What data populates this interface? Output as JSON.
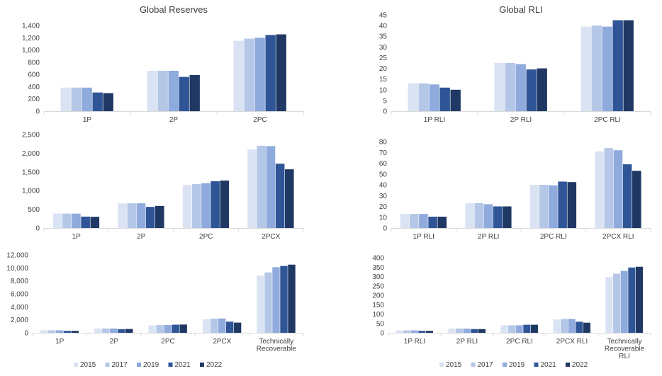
{
  "colors": [
    "#dae3f3",
    "#b4c7e7",
    "#8faadc",
    "#2f5597",
    "#203864"
  ],
  "legends": [
    {
      "entries": [
        "2015",
        "2017",
        "2019",
        "2021",
        "2022"
      ]
    },
    {
      "entries": [
        "2015",
        "2017",
        "2019",
        "2021",
        "2022"
      ]
    }
  ],
  "chart_data": [
    {
      "type": "bar",
      "title": "Global Reserves",
      "categories": [
        [
          "1P"
        ],
        [
          "2P"
        ],
        [
          "2PC"
        ]
      ],
      "yticks": [
        "0",
        "200",
        "400",
        "600",
        "800",
        "1,000",
        "1,200",
        "1,400"
      ],
      "ylim": [
        0,
        1400
      ],
      "series": [
        {
          "name": "2015",
          "values": [
            385,
            660,
            1150
          ]
        },
        {
          "name": "2017",
          "values": [
            385,
            660,
            1185
          ]
        },
        {
          "name": "2019",
          "values": [
            385,
            660,
            1200
          ]
        },
        {
          "name": "2021",
          "values": [
            305,
            560,
            1245
          ]
        },
        {
          "name": "2022",
          "values": [
            295,
            590,
            1255
          ]
        }
      ]
    },
    {
      "type": "bar",
      "title": "Global RLI",
      "categories": [
        [
          "1P RLI"
        ],
        [
          "2P RLI"
        ],
        [
          "2PC RLI"
        ]
      ],
      "yticks": [
        "0",
        "5",
        "10",
        "15",
        "20",
        "25",
        "30",
        "35",
        "40",
        "45"
      ],
      "ylim": [
        0,
        45
      ],
      "series": [
        {
          "name": "2015",
          "values": [
            13,
            22.5,
            39.5
          ]
        },
        {
          "name": "2017",
          "values": [
            13,
            22.5,
            40
          ]
        },
        {
          "name": "2019",
          "values": [
            12.5,
            22,
            39.5
          ]
        },
        {
          "name": "2021",
          "values": [
            11,
            19.5,
            42.5
          ]
        },
        {
          "name": "2022",
          "values": [
            10,
            20,
            42.5
          ]
        }
      ]
    },
    {
      "type": "bar",
      "title": "",
      "categories": [
        [
          "1P"
        ],
        [
          "2P"
        ],
        [
          "2PC"
        ],
        [
          "2PCX"
        ]
      ],
      "yticks": [
        "0",
        "500",
        "1,000",
        "1,500",
        "2,000",
        "2,500"
      ],
      "ylim": [
        0,
        2500
      ],
      "series": [
        {
          "name": "2015",
          "values": [
            385,
            660,
            1150,
            2100
          ]
        },
        {
          "name": "2017",
          "values": [
            385,
            660,
            1175,
            2200
          ]
        },
        {
          "name": "2019",
          "values": [
            385,
            660,
            1200,
            2190
          ]
        },
        {
          "name": "2021",
          "values": [
            305,
            565,
            1250,
            1720
          ]
        },
        {
          "name": "2022",
          "values": [
            300,
            590,
            1270,
            1570
          ]
        }
      ]
    },
    {
      "type": "bar",
      "title": "",
      "categories": [
        [
          "1P RLI"
        ],
        [
          "2P RLI"
        ],
        [
          "2PC RLI"
        ],
        [
          "2PCX RLI"
        ]
      ],
      "yticks": [
        "0",
        "10",
        "20",
        "30",
        "40",
        "50",
        "60",
        "70",
        "80"
      ],
      "ylim": [
        0,
        80
      ],
      "series": [
        {
          "name": "2015",
          "values": [
            13,
            23,
            40,
            71
          ]
        },
        {
          "name": "2017",
          "values": [
            13,
            23,
            40,
            74
          ]
        },
        {
          "name": "2019",
          "values": [
            13,
            22,
            39.5,
            72
          ]
        },
        {
          "name": "2021",
          "values": [
            10.5,
            20,
            43,
            59
          ]
        },
        {
          "name": "2022",
          "values": [
            10.5,
            20,
            42.5,
            53
          ]
        }
      ]
    },
    {
      "type": "bar",
      "title": "",
      "categories": [
        [
          "1P"
        ],
        [
          "2P"
        ],
        [
          "2PC"
        ],
        [
          "2PCX"
        ],
        [
          "Technically",
          "Recoverable"
        ]
      ],
      "yticks": [
        "0",
        "2,000",
        "4,000",
        "6,000",
        "8,000",
        "10,000",
        "12,000"
      ],
      "ylim": [
        0,
        12000
      ],
      "series": [
        {
          "name": "2015",
          "values": [
            385,
            660,
            1150,
            2100,
            8800
          ]
        },
        {
          "name": "2017",
          "values": [
            385,
            660,
            1185,
            2200,
            9300
          ]
        },
        {
          "name": "2019",
          "values": [
            385,
            660,
            1200,
            2200,
            10100
          ]
        },
        {
          "name": "2021",
          "values": [
            305,
            565,
            1250,
            1720,
            10300
          ]
        },
        {
          "name": "2022",
          "values": [
            300,
            590,
            1270,
            1570,
            10500
          ]
        }
      ]
    },
    {
      "type": "bar",
      "title": "",
      "categories": [
        [
          "1P RLI"
        ],
        [
          "2P RLI"
        ],
        [
          "2PC RLI"
        ],
        [
          "2PCX RLI"
        ],
        [
          "Technically",
          "Recoverable",
          "RLI"
        ]
      ],
      "yticks": [
        "0",
        "50",
        "100",
        "150",
        "200",
        "250",
        "300",
        "350",
        "400"
      ],
      "ylim": [
        0,
        400
      ],
      "series": [
        {
          "name": "2015",
          "values": [
            13,
            23,
            40,
            71,
            298
          ]
        },
        {
          "name": "2017",
          "values": [
            13,
            23,
            40,
            74,
            315
          ]
        },
        {
          "name": "2019",
          "values": [
            13,
            22,
            40,
            74,
            330
          ]
        },
        {
          "name": "2021",
          "values": [
            10.5,
            20,
            43,
            59,
            348
          ]
        },
        {
          "name": "2022",
          "values": [
            10.5,
            20,
            43,
            54,
            352
          ]
        }
      ]
    }
  ]
}
